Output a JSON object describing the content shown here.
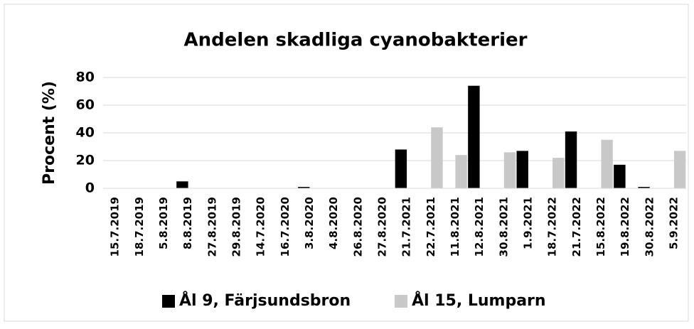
{
  "chart_data": {
    "type": "bar",
    "title": "Andelen skadliga cyanobakterier",
    "y_label": "Procent (%)",
    "categories": [
      "15.7.2019",
      "18.7.2019",
      "5.8.2019",
      "8.8.2019",
      "27.8.2019",
      "29.8.2019",
      "14.7.2020",
      "16.7.2020",
      "3.8.2020",
      "4.8.2020",
      "26.8.2020",
      "27.8.2020",
      "21.7.2021",
      "22.7.2021",
      "11.8.2021",
      "12.8.2021",
      "30.8.2021",
      "1.9.2021",
      "18.7.2022",
      "21.7.2022",
      "15.8.2022",
      "19.8.2022",
      "30.8.2022",
      "5.9.2022"
    ],
    "series": [
      {
        "name": "Ål 9, Färjsundsbron",
        "color": "#000000",
        "values": [
          0,
          0,
          0,
          5,
          0,
          0,
          0,
          0,
          1,
          0,
          0,
          0,
          28,
          null,
          null,
          74,
          null,
          27,
          null,
          41,
          null,
          17,
          1,
          null
        ]
      },
      {
        "name": "Ål 15, Lumparn",
        "color": "#c8c8c8",
        "values": [
          null,
          null,
          null,
          null,
          null,
          null,
          null,
          null,
          null,
          null,
          null,
          null,
          null,
          44,
          24,
          null,
          26,
          null,
          22,
          null,
          35,
          null,
          null,
          27
        ]
      }
    ],
    "ylim": [
      0,
      80
    ],
    "yticks": [
      0,
      20,
      40,
      60,
      80
    ],
    "grid": true,
    "legend": "bottom"
  }
}
